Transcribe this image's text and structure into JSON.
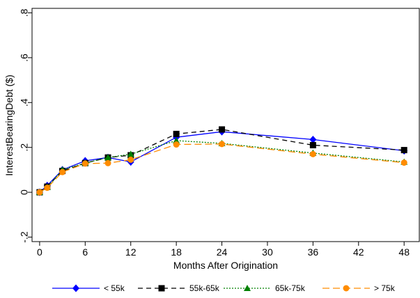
{
  "chart_data": {
    "type": "line",
    "title": "",
    "xlabel": "Months After Origination",
    "ylabel": "InterestBearingDebt ($)",
    "xlim": [
      -1,
      50
    ],
    "ylim": [
      -0.22,
      0.82
    ],
    "xticks": [
      0,
      6,
      12,
      18,
      24,
      30,
      36,
      42,
      48
    ],
    "xtick_labels": [
      "0",
      "6",
      "12",
      "18",
      "24",
      "30",
      "36",
      "42",
      "48"
    ],
    "yticks": [
      -0.2,
      0,
      0.2,
      0.4,
      0.6,
      0.8
    ],
    "ytick_labels": [
      "-.2",
      "0",
      ".2",
      ".4",
      ".6",
      ".8"
    ],
    "grid": false,
    "legend_position": "bottom",
    "series": [
      {
        "name": "< 55k",
        "color": "#0000ff",
        "marker": "diamond",
        "dash": "solid",
        "x": [
          0,
          1,
          3,
          6,
          9,
          12,
          18,
          24,
          36,
          48
        ],
        "y": [
          0.0,
          0.03,
          0.1,
          0.14,
          0.155,
          0.135,
          0.245,
          0.27,
          0.235,
          0.185
        ]
      },
      {
        "name": "55k-65k",
        "color": "#000000",
        "marker": "square",
        "dash": "dashed",
        "x": [
          0,
          1,
          3,
          6,
          9,
          12,
          18,
          24,
          36,
          48
        ],
        "y": [
          0.0,
          0.025,
          0.095,
          0.13,
          0.155,
          0.165,
          0.26,
          0.28,
          0.21,
          0.188
        ]
      },
      {
        "name": "65k-75k",
        "color": "#008000",
        "marker": "triangle",
        "dash": "dotted",
        "x": [
          0,
          1,
          3,
          6,
          9,
          12,
          18,
          24,
          36,
          48
        ],
        "y": [
          0.0,
          0.022,
          0.1,
          0.13,
          0.155,
          0.17,
          0.23,
          0.218,
          0.175,
          0.135
        ]
      },
      {
        "name": "> 75k",
        "color": "#ff8c00",
        "marker": "circle",
        "dash": "longdash",
        "x": [
          0,
          1,
          3,
          6,
          9,
          12,
          18,
          24,
          36,
          48
        ],
        "y": [
          0.0,
          0.02,
          0.09,
          0.128,
          0.13,
          0.145,
          0.213,
          0.215,
          0.17,
          0.132
        ]
      }
    ]
  }
}
